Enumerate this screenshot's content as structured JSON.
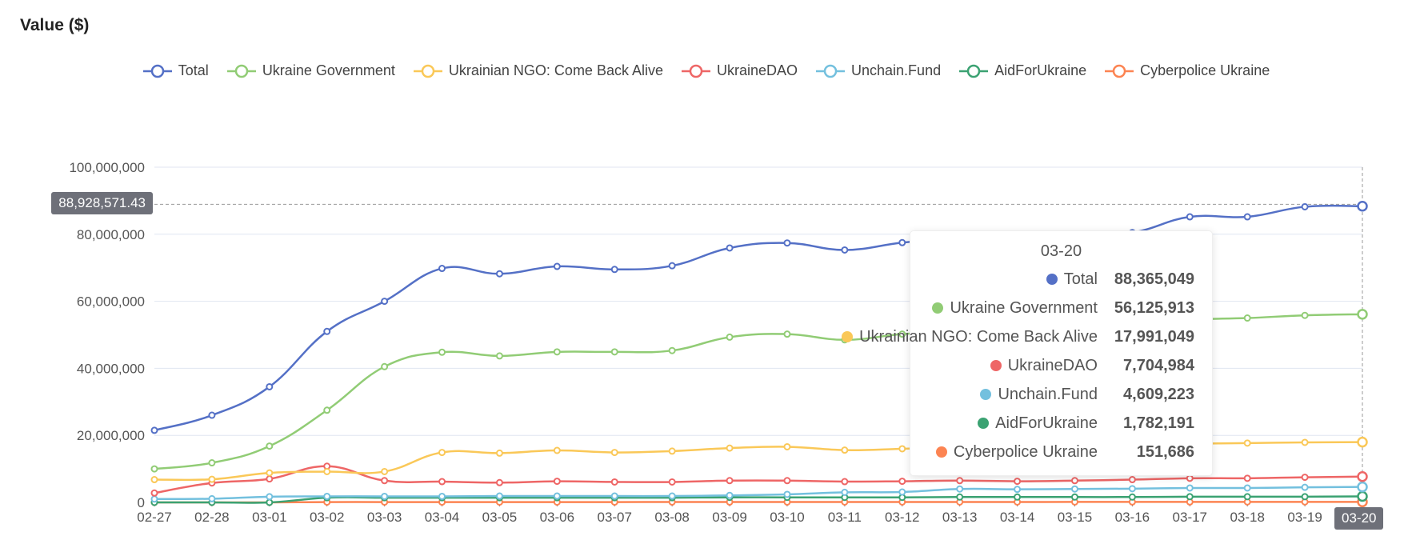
{
  "chart_data": {
    "type": "line",
    "title": "Value ($)",
    "categories": [
      "02-27",
      "02-28",
      "03-01",
      "03-02",
      "03-03",
      "03-04",
      "03-05",
      "03-06",
      "03-07",
      "03-08",
      "03-09",
      "03-10",
      "03-11",
      "03-12",
      "03-13",
      "03-14",
      "03-15",
      "03-16",
      "03-17",
      "03-18",
      "03-19",
      "03-20"
    ],
    "ylim": [
      0,
      100000000
    ],
    "yticks": [
      "0",
      "20,000,000",
      "40,000,000",
      "60,000,000",
      "80,000,000",
      "100,000,000"
    ],
    "grid": true,
    "legend_position": "top-center",
    "series": [
      {
        "name": "Total",
        "color": "#5470c6",
        "values": [
          21500000,
          26000000,
          34500000,
          51000000,
          60000000,
          69800000,
          68200000,
          70400000,
          69500000,
          70600000,
          75900000,
          77400000,
          75300000,
          77500000,
          79000000,
          79500000,
          80000000,
          80500000,
          85200000,
          85200000,
          88200000,
          88365049
        ]
      },
      {
        "name": "Ukraine Government",
        "color": "#91cc75",
        "values": [
          10000000,
          11800000,
          16800000,
          27500000,
          40500000,
          44800000,
          43700000,
          44900000,
          44900000,
          45300000,
          49300000,
          50200000,
          48500000,
          50200000,
          51000000,
          51500000,
          52000000,
          53000000,
          54500000,
          55000000,
          55800000,
          56125913
        ]
      },
      {
        "name": "Ukrainian NGO: Come Back Alive",
        "color": "#fac858",
        "values": [
          6800000,
          6900000,
          8800000,
          9200000,
          9200000,
          14900000,
          14700000,
          15500000,
          14900000,
          15300000,
          16200000,
          16600000,
          15600000,
          16000000,
          16500000,
          16800000,
          17000000,
          17200000,
          17500000,
          17700000,
          17900000,
          17991049
        ]
      },
      {
        "name": "UkraineDAO",
        "color": "#ee6666",
        "values": [
          2800000,
          5800000,
          7000000,
          10800000,
          6500000,
          6200000,
          5900000,
          6300000,
          6100000,
          6100000,
          6500000,
          6500000,
          6200000,
          6300000,
          6500000,
          6300000,
          6500000,
          6800000,
          7200000,
          7200000,
          7500000,
          7704984
        ]
      },
      {
        "name": "Unchain.Fund",
        "color": "#73c0de",
        "values": [
          1000000,
          1100000,
          1700000,
          1800000,
          1800000,
          1800000,
          1900000,
          1900000,
          1900000,
          1900000,
          2100000,
          2400000,
          3000000,
          3100000,
          4000000,
          3900000,
          4000000,
          4100000,
          4300000,
          4300000,
          4500000,
          4609223
        ]
      },
      {
        "name": "AidForUkraine",
        "color": "#3ba272",
        "values": [
          0,
          0,
          0,
          1400000,
          1400000,
          1400000,
          1400000,
          1400000,
          1400000,
          1400000,
          1500000,
          1500000,
          1500000,
          1500000,
          1600000,
          1600000,
          1600000,
          1600000,
          1700000,
          1700000,
          1700000,
          1782191
        ]
      },
      {
        "name": "Cyberpolice Ukraine",
        "color": "#fc8452",
        "values": [
          0,
          0,
          0,
          100000,
          100000,
          100000,
          100000,
          100000,
          100000,
          110000,
          110000,
          110000,
          120000,
          120000,
          130000,
          130000,
          135000,
          140000,
          145000,
          148000,
          150000,
          151686
        ]
      }
    ],
    "tooltip": {
      "title": "03-20",
      "rows": [
        {
          "name": "Total",
          "value": "88,365,049"
        },
        {
          "name": "Ukraine Government",
          "value": "56,125,913"
        },
        {
          "name": "Ukrainian NGO: Come Back Alive",
          "value": "17,991,049"
        },
        {
          "name": "UkraineDAO",
          "value": "7,704,984"
        },
        {
          "name": "Unchain.Fund",
          "value": "4,609,223"
        },
        {
          "name": "AidForUkraine",
          "value": "1,782,191"
        },
        {
          "name": "Cyberpolice Ukraine",
          "value": "151,686"
        }
      ]
    },
    "axis_pointer": {
      "y_value": 88928571.43,
      "y_label": "88,928,571.43",
      "x_label": "03-20"
    }
  }
}
